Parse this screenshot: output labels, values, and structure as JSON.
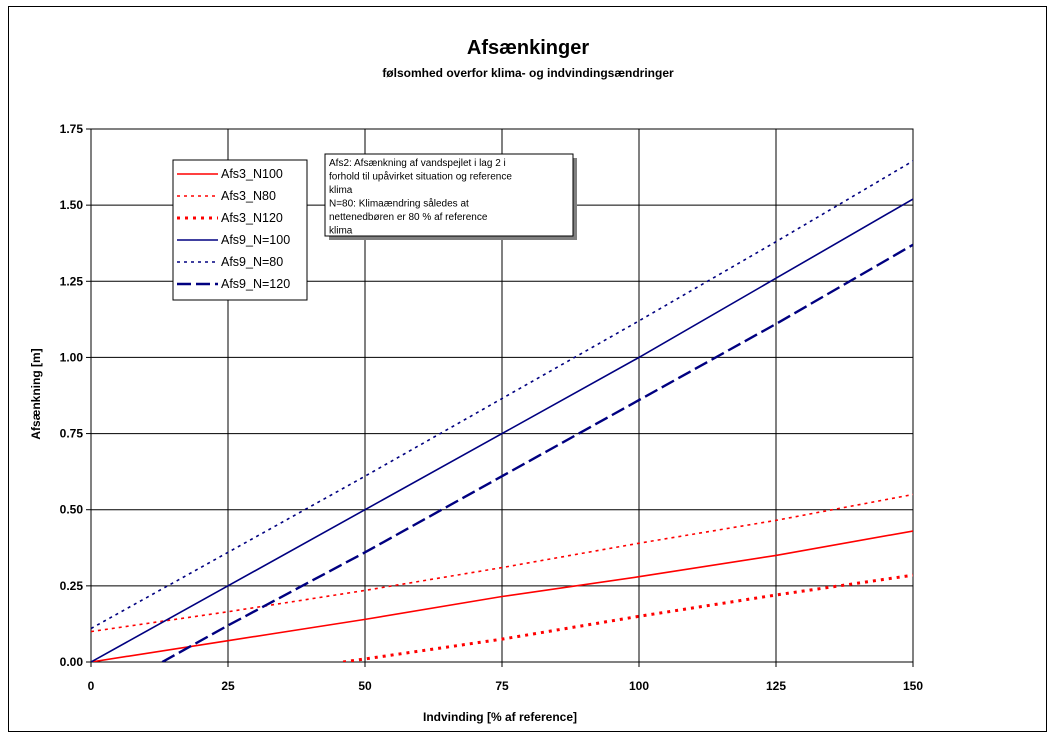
{
  "chart_data": {
    "type": "line",
    "title": "Afsænkinger",
    "subtitle": "følsomhed overfor klima- og indvindingsændringer",
    "xlabel": "Indvinding [% af reference]",
    "ylabel": "Afsænkning [m]",
    "xlim": [
      0,
      150
    ],
    "ylim": [
      0,
      1.75
    ],
    "x_ticks": [
      "0",
      "25",
      "50",
      "75",
      "100",
      "125",
      "150"
    ],
    "y_ticks": [
      "0.00",
      "0.25",
      "0.50",
      "0.75",
      "1.00",
      "1.25",
      "1.50",
      "1.75"
    ],
    "grid": true,
    "legend_position": "top-left",
    "annotation": [
      "Afs2: Afsænkning af vandspejlet i lag 2 i",
      "forhold til upåvirket situation og reference",
      "klima",
      "N=80: Klimaændring således at",
      "nettenedbøren er 80 % af reference",
      "klima"
    ],
    "series": [
      {
        "name": "Afs3_N100",
        "color": "#ff0000",
        "style": "solid",
        "points": [
          [
            0,
            0.0
          ],
          [
            25,
            0.07
          ],
          [
            50,
            0.14
          ],
          [
            75,
            0.215
          ],
          [
            100,
            0.28
          ],
          [
            125,
            0.35
          ],
          [
            150,
            0.43
          ]
        ]
      },
      {
        "name": "Afs3_N80",
        "color": "#ff0000",
        "style": "dotted",
        "points": [
          [
            0,
            0.1
          ],
          [
            25,
            0.165
          ],
          [
            50,
            0.235
          ],
          [
            75,
            0.31
          ],
          [
            100,
            0.39
          ],
          [
            125,
            0.465
          ],
          [
            150,
            0.55
          ]
        ]
      },
      {
        "name": "Afs3_N120",
        "color": "#ff0000",
        "style": "dotted-thick",
        "points": [
          [
            46,
            0.0
          ],
          [
            50,
            0.01
          ],
          [
            75,
            0.075
          ],
          [
            100,
            0.15
          ],
          [
            125,
            0.22
          ],
          [
            150,
            0.285
          ]
        ]
      },
      {
        "name": "Afs9_N=100",
        "color": "#000080",
        "style": "solid",
        "points": [
          [
            0,
            0.0
          ],
          [
            25,
            0.25
          ],
          [
            50,
            0.5
          ],
          [
            75,
            0.75
          ],
          [
            100,
            1.0
          ],
          [
            125,
            1.26
          ],
          [
            150,
            1.52
          ]
        ]
      },
      {
        "name": "Afs9_N=80",
        "color": "#000080",
        "style": "dotted",
        "points": [
          [
            0,
            0.11
          ],
          [
            25,
            0.36
          ],
          [
            50,
            0.61
          ],
          [
            75,
            0.865
          ],
          [
            100,
            1.12
          ],
          [
            125,
            1.38
          ],
          [
            150,
            1.645
          ]
        ]
      },
      {
        "name": "Afs9_N=120",
        "color": "#000080",
        "style": "dashed",
        "points": [
          [
            13,
            0.0
          ],
          [
            25,
            0.12
          ],
          [
            50,
            0.36
          ],
          [
            75,
            0.61
          ],
          [
            100,
            0.86
          ],
          [
            125,
            1.11
          ],
          [
            150,
            1.37
          ]
        ]
      }
    ]
  }
}
